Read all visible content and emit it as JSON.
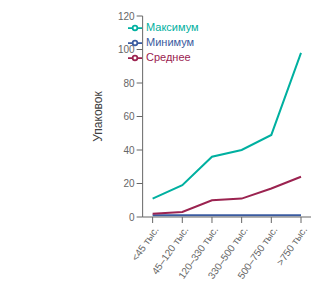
{
  "chart_data": {
    "type": "line",
    "ylabel": "Упаковок",
    "categories": [
      "<45 тыс.",
      "45–120 тыс.",
      "120–330 тыс.",
      "330–500 тыс.",
      "500–750 тыс.",
      ">750 тыс."
    ],
    "series": [
      {
        "name": "Минимум",
        "color": "#3a5ba0",
        "values": [
          1,
          1,
          1,
          1,
          1,
          1
        ]
      },
      {
        "name": "Среднее",
        "color": "#9b2350",
        "values": [
          2,
          3,
          10,
          11,
          17,
          24
        ]
      },
      {
        "name": "Максимум",
        "color": "#00b0a0",
        "values": [
          11,
          19,
          36,
          40,
          49,
          98
        ]
      }
    ],
    "ylim": [
      0,
      120
    ],
    "yticks": [
      0,
      20,
      40,
      60,
      80,
      100,
      120
    ],
    "grid": false,
    "legend": "upper left"
  }
}
